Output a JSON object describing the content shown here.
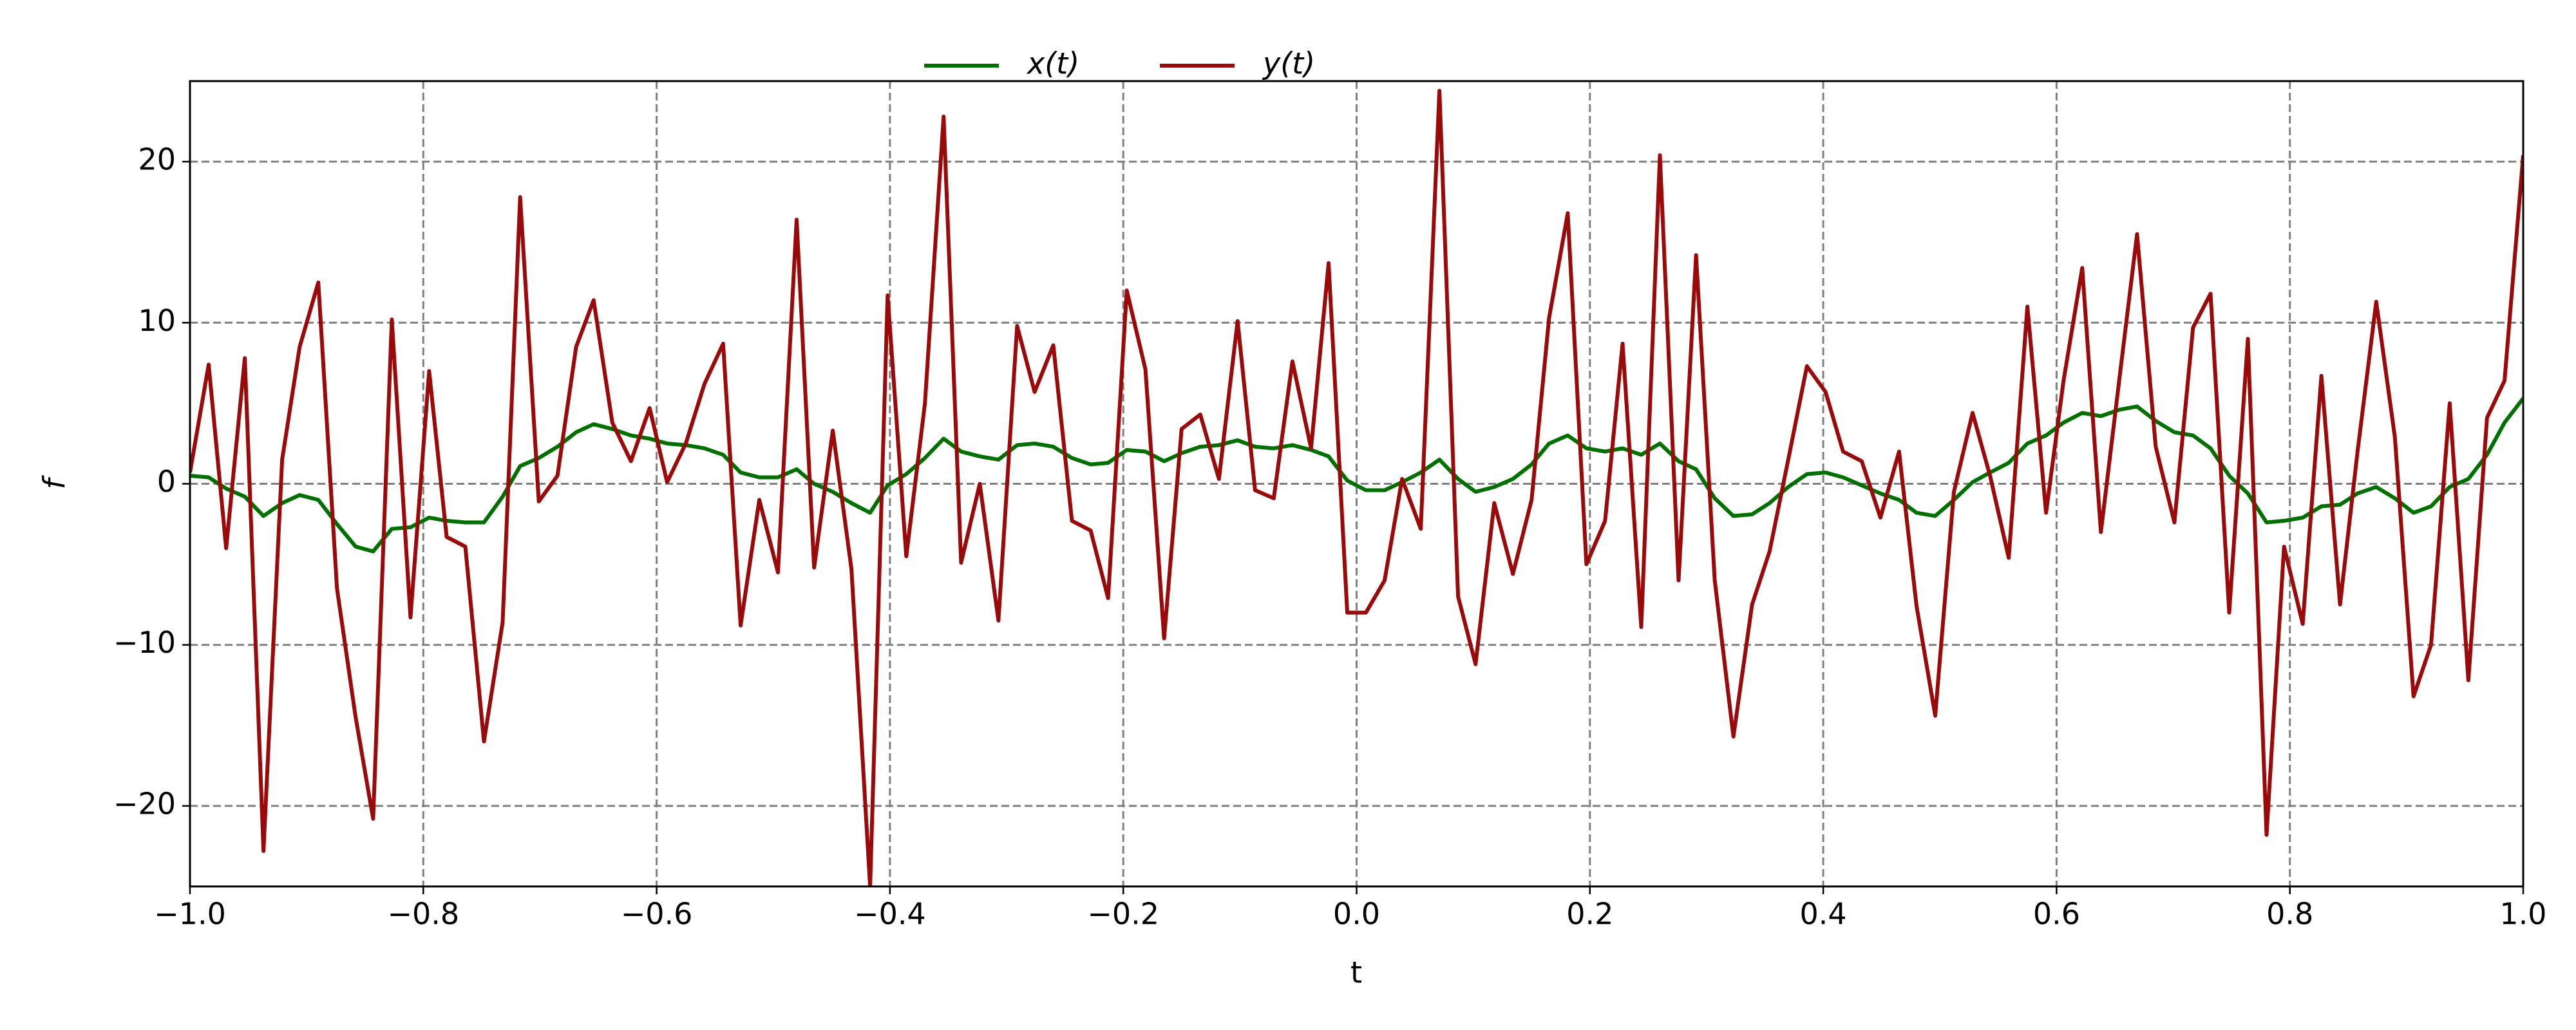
{
  "chart_data": {
    "type": "line",
    "xlabel": "t",
    "ylabel": "f",
    "x": [
      -1,
      -0.984,
      -0.969,
      -0.953,
      -0.937,
      -0.921,
      -0.906,
      -0.89,
      -0.874,
      -0.858,
      -0.843,
      -0.827,
      -0.811,
      -0.795,
      -0.78,
      -0.764,
      -0.748,
      -0.732,
      -0.717,
      -0.701,
      -0.685,
      -0.669,
      -0.654,
      -0.638,
      -0.622,
      -0.606,
      -0.591,
      -0.575,
      -0.559,
      -0.543,
      -0.528,
      -0.512,
      -0.496,
      -0.48,
      -0.465,
      -0.449,
      -0.433,
      -0.417,
      -0.402,
      -0.386,
      -0.37,
      -0.354,
      -0.339,
      -0.323,
      -0.307,
      -0.291,
      -0.276,
      -0.26,
      -0.244,
      -0.228,
      -0.213,
      -0.197,
      -0.181,
      -0.165,
      -0.15,
      -0.134,
      -0.118,
      -0.102,
      -0.087,
      -0.071,
      -0.055,
      -0.039,
      -0.024,
      -0.008,
      0.008,
      0.024,
      0.039,
      0.055,
      0.071,
      0.087,
      0.102,
      0.118,
      0.134,
      0.15,
      0.165,
      0.181,
      0.197,
      0.213,
      0.228,
      0.244,
      0.26,
      0.276,
      0.291,
      0.307,
      0.323,
      0.339,
      0.354,
      0.37,
      0.386,
      0.402,
      0.417,
      0.433,
      0.449,
      0.465,
      0.48,
      0.496,
      0.512,
      0.528,
      0.543,
      0.559,
      0.575,
      0.591,
      0.606,
      0.622,
      0.638,
      0.654,
      0.669,
      0.685,
      0.701,
      0.717,
      0.732,
      0.748,
      0.764,
      0.78,
      0.795,
      0.811,
      0.827,
      0.843,
      0.858,
      0.874,
      0.89,
      0.906,
      0.921,
      0.937,
      0.953,
      0.969,
      0.984,
      1
    ],
    "series": [
      {
        "name": "x(t)",
        "color": "#007000",
        "values": [
          0.5,
          0.4,
          -0.3,
          -0.8,
          -2,
          -1.2,
          -0.7,
          -1,
          -2.5,
          -3.9,
          -4.2,
          -2.8,
          -2.7,
          -2.1,
          -2.3,
          -2.4,
          -2.4,
          -0.8,
          1.1,
          1.6,
          2.3,
          3.2,
          3.7,
          3.4,
          3.0,
          2.8,
          2.5,
          2.4,
          2.2,
          1.8,
          0.7,
          0.4,
          0.4,
          0.9,
          0,
          -0.5,
          -1.2,
          -1.8,
          -0.1,
          0.6,
          1.6,
          2.8,
          2,
          1.7,
          1.5,
          2.4,
          2.5,
          2.3,
          1.6,
          1.2,
          1.3,
          2.1,
          2,
          1.4,
          1.9,
          2.3,
          2.4,
          2.7,
          2.3,
          2.2,
          2.4,
          2.1,
          1.7,
          0.2,
          -0.4,
          -0.4,
          0.1,
          0.7,
          1.5,
          0.3,
          -0.5,
          -0.2,
          0.3,
          1.2,
          2.5,
          3,
          2.2,
          2,
          2.2,
          1.8,
          2.5,
          1.4,
          0.9,
          -0.9,
          -2,
          -1.9,
          -1.2,
          -0.2,
          0.6,
          0.7,
          0.4,
          -0.1,
          -0.6,
          -1,
          -1.8,
          -2,
          -1,
          0.1,
          0.7,
          1.3,
          2.5,
          3,
          3.8,
          4.4,
          4.2,
          4.6,
          4.8,
          3.9,
          3.2,
          3,
          2.2,
          0.5,
          -0.6,
          -2.4,
          -2.3,
          -2.1,
          -1.4,
          -1.3,
          -0.6,
          -0.2,
          -0.9,
          -1.8,
          -1.4,
          -0.2,
          0.3,
          1.8,
          3.8,
          5.3
        ]
      },
      {
        "name": "y(t)",
        "color": "#9b0a0a",
        "values": [
          0.7,
          7.4,
          -4,
          7.8,
          -22.8,
          1.5,
          8.5,
          12.5,
          -6.5,
          -14.5,
          -20.8,
          10.2,
          -8.3,
          7,
          -3.3,
          -3.9,
          -16,
          -8.6,
          17.8,
          -1.1,
          0.5,
          8.5,
          11.4,
          3.8,
          1.4,
          4.7,
          0.1,
          2.5,
          6.2,
          8.7,
          -8.8,
          -1,
          -5.5,
          16.4,
          -5.2,
          3.3,
          -5.3,
          -25,
          11.7,
          -4.5,
          5,
          22.8,
          -4.9,
          0,
          -8.5,
          9.8,
          5.7,
          8.6,
          -2.3,
          -2.9,
          -7.1,
          12,
          7.1,
          -9.6,
          3.4,
          4.3,
          0.3,
          10.1,
          -0.4,
          -0.9,
          7.6,
          2.2,
          13.7,
          -8,
          -8,
          -6,
          0.3,
          -2.8,
          24.4,
          -7,
          -11.2,
          -1.2,
          -5.6,
          -1,
          10.3,
          16.8,
          -5,
          -2.3,
          8.7,
          -8.9,
          20.4,
          -6,
          14.2,
          -6,
          -15.7,
          -7.5,
          -4.2,
          1.5,
          7.3,
          5.7,
          2,
          1.4,
          -2.1,
          2,
          -7.6,
          -14.4,
          -0.5,
          4.4,
          0.5,
          -4.6,
          11,
          -1.8,
          6.4,
          13.4,
          -3,
          6.6,
          15.5,
          2.3,
          -2.4,
          9.7,
          11.8,
          -8,
          9,
          -21.8,
          -3.9,
          -8.7,
          6.7,
          -7.5,
          2,
          11.3,
          2.9,
          -13.2,
          -10,
          5,
          -12.2,
          4.1,
          6.4,
          20.4
        ]
      }
    ],
    "xlim": [
      -1,
      1
    ],
    "ylim": [
      -25,
      25
    ],
    "xticks": [
      {
        "value": -1,
        "label": "−1.0"
      },
      {
        "value": -0.8,
        "label": "−0.8"
      },
      {
        "value": -0.6,
        "label": "−0.6"
      },
      {
        "value": -0.4,
        "label": "−0.4"
      },
      {
        "value": -0.2,
        "label": "−0.2"
      },
      {
        "value": 0,
        "label": "0.0"
      },
      0.2,
      0.4,
      0.6,
      0.8,
      {
        "value": 1,
        "label": "1.0"
      }
    ],
    "yticks": [
      {
        "value": -20,
        "label": "−20"
      },
      {
        "value": -10,
        "label": "−10"
      },
      0,
      10,
      20
    ],
    "grid": true,
    "legend": "upper center"
  }
}
